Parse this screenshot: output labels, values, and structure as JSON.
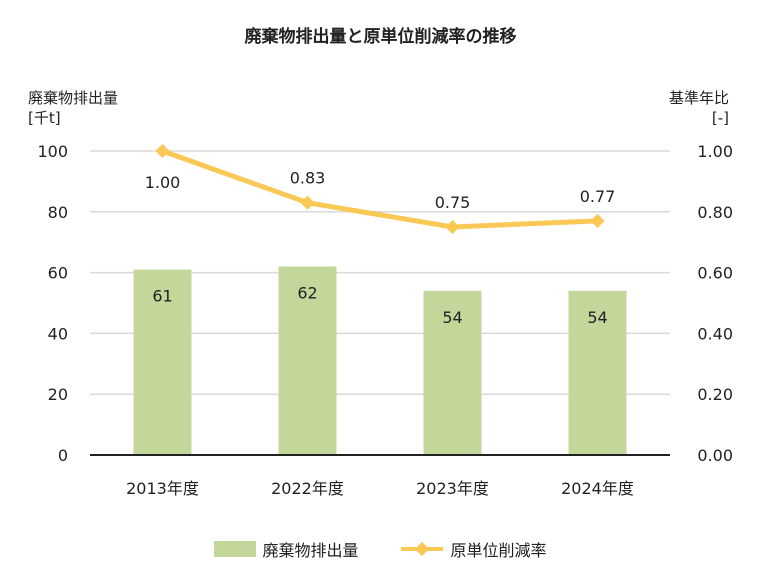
{
  "chart_data": {
    "type": "bar+line",
    "title": "廃棄物排出量と原単位削減率の推移",
    "categories": [
      "2013年度",
      "2022年度",
      "2023年度",
      "2024年度"
    ],
    "y_left": {
      "label_line1": "廃棄物排出量",
      "label_line2": "[千t]",
      "range": [
        0,
        100
      ],
      "ticks": [
        "0",
        "20",
        "40",
        "60",
        "80",
        "100"
      ]
    },
    "y_right": {
      "label_line1": "基準年比",
      "label_line2": "[-]",
      "range": [
        0,
        1
      ],
      "ticks": [
        "0.00",
        "0.20",
        "0.40",
        "0.60",
        "0.80",
        "1.00"
      ]
    },
    "grid": true,
    "legend_position": "bottom",
    "series": [
      {
        "name": "廃棄物排出量",
        "type": "bar",
        "axis": "left",
        "values": [
          61,
          62,
          54,
          54
        ],
        "labels": [
          "61",
          "62",
          "54",
          "54"
        ],
        "color": "#c4d79b"
      },
      {
        "name": "原単位削減率",
        "type": "line",
        "axis": "right",
        "values": [
          1.0,
          0.83,
          0.75,
          0.77
        ],
        "labels": [
          "1.00",
          "0.83",
          "0.75",
          "0.77"
        ],
        "color": "#fac855"
      }
    ]
  }
}
